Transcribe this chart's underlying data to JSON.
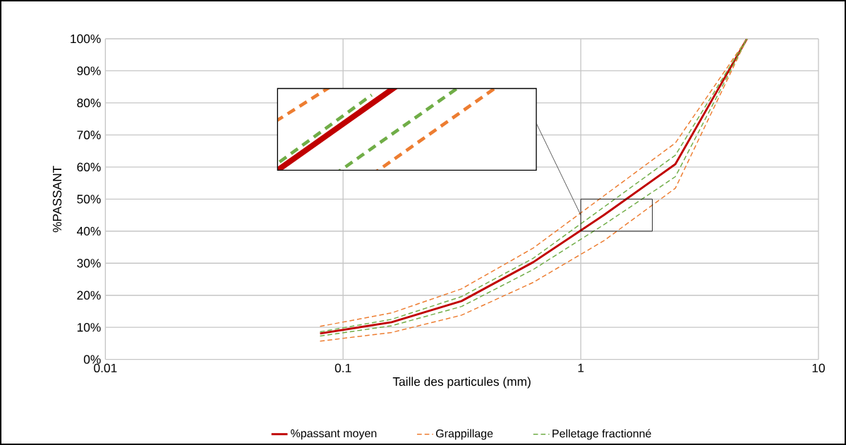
{
  "chart_data": {
    "type": "line",
    "xlabel": "Taille des particules (mm)",
    "ylabel": "%PASSANT",
    "log": "x",
    "grid": true,
    "legend": "bottom",
    "x": [
      0.08,
      0.16,
      0.315,
      0.63,
      1.25,
      2.5,
      5
    ],
    "xlim": [
      0.01,
      10
    ],
    "xticks": [
      0.01,
      0.1,
      1,
      10
    ],
    "ylim": [
      0,
      100
    ],
    "yticks": [
      {
        "value": 0,
        "label": "0%"
      },
      {
        "value": 10,
        "label": "10%"
      },
      {
        "value": 20,
        "label": "20%"
      },
      {
        "value": 30,
        "label": "30%"
      },
      {
        "value": 40,
        "label": "40%"
      },
      {
        "value": 50,
        "label": "50%"
      },
      {
        "value": 60,
        "label": "60%"
      },
      {
        "value": 70,
        "label": "70%"
      },
      {
        "value": 80,
        "label": "80%"
      },
      {
        "value": 90,
        "label": "90%"
      },
      {
        "value": 100,
        "label": "100%"
      }
    ],
    "series": [
      {
        "name": "%passant moyen",
        "color": "#c00000",
        "line_style": "solid",
        "values": [
          8.1,
          11.6,
          18.2,
          30.3,
          45,
          60.9,
          100
        ]
      },
      {
        "name": "Grappillage",
        "color": "#ed7d31",
        "line_style": "dashed",
        "values": [
          10.3,
          14.5,
          22,
          34.7,
          51,
          67.5,
          100
        ]
      },
      {
        "color": "#ed7d31",
        "line_style": "dashed",
        "values": [
          5.7,
          8.4,
          13.8,
          24,
          37,
          53.4,
          100
        ]
      },
      {
        "name": "Pelletage fractionné",
        "color": "#70ad47",
        "line_style": "dashed",
        "values": [
          8.6,
          12.5,
          19.6,
          31.5,
          47.5,
          63.7,
          100
        ]
      },
      {
        "color": "#70ad47",
        "line_style": "dashed",
        "values": [
          7.3,
          10.5,
          16.5,
          28,
          42,
          57,
          100
        ]
      }
    ]
  }
}
